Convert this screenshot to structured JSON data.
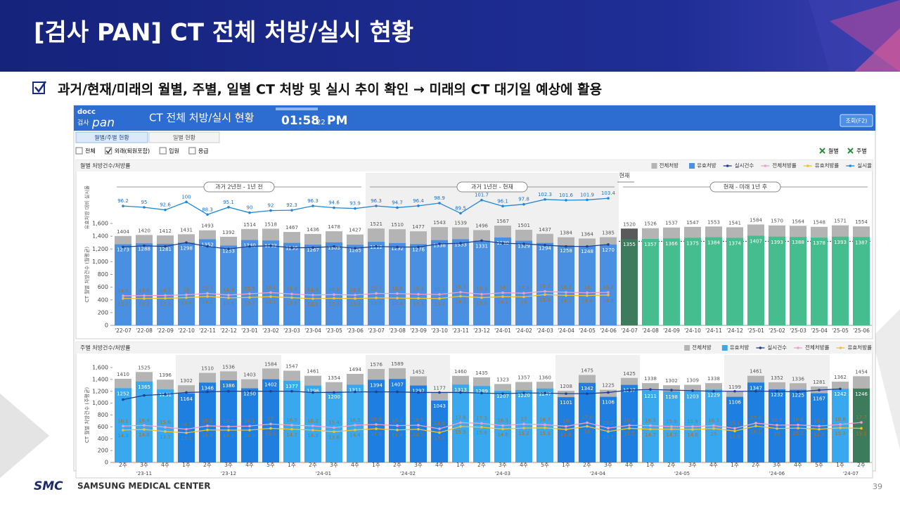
{
  "header": {
    "title": "[검사 PAN] CT 전체 처방/실시 현황",
    "subtitle": "과거/현재/미래의 월별, 주별, 일별 CT 처방 및 실시 추이 확인 → 미래의 CT 대기일 예상에 활용"
  },
  "app": {
    "logo_brand": "docc",
    "logo_sub": "검사",
    "logo_name": "pan",
    "title": "CT 전체 처방/실시 현황",
    "time": "01:58",
    "seconds": "22",
    "ampm": "PM",
    "search_button": "조회(F2)",
    "tabs": [
      "월별/주별 현황",
      "일별 현황"
    ],
    "filters": [
      {
        "label": "전체",
        "checked": false
      },
      {
        "label": "외래(퇴원포함)",
        "checked": true
      },
      {
        "label": "입원",
        "checked": false
      },
      {
        "label": "응급",
        "checked": false
      }
    ],
    "export_buttons": [
      "월별",
      "주별"
    ]
  },
  "chart_data": [
    {
      "type": "combo",
      "title": "월별 처방건수/처방률",
      "ylabel": "CT 월별 처방건수 (월평균)",
      "y3label": "유효처방 대비 실시율",
      "periods": [
        "과거 2년전 - 1년 전",
        "과거 1년전 - 현재",
        "현재 - 미래 1년 후"
      ],
      "current_label": "현재",
      "categories": [
        "'22-07",
        "'22-08",
        "'22-09",
        "'22-10",
        "'22-11",
        "'22-12",
        "'23-01",
        "'23-02",
        "'23-03",
        "'23-04",
        "'23-05",
        "'23-06",
        "'23-07",
        "'23-08",
        "'23-09",
        "'23-10",
        "'23-11",
        "'23-12",
        "'24-01",
        "'24-02",
        "'24-03",
        "'24-04",
        "'24-05",
        "'24-06",
        "'24-07",
        "'24-08",
        "'24-09",
        "'24-10",
        "'24-11",
        "'24-12",
        "'25-01",
        "'25-02",
        "'25-03",
        "'25-04",
        "'25-05",
        "'25-06"
      ],
      "ylim": [
        0,
        1600
      ],
      "yticks": [
        0,
        200,
        400,
        600,
        800,
        {
          "value": 1000,
          "label": "1,000"
        },
        {
          "value": 1200,
          "label": "1,200"
        },
        {
          "value": 1400,
          "label": "1,400"
        },
        {
          "value": 1600,
          "label": "1,600"
        }
      ],
      "y2lim": [
        0,
        50
      ],
      "y3lim": [
        80,
        110
      ],
      "series": [
        {
          "name": "전체처방",
          "kind": "bar",
          "color": "#b4b4b4",
          "values": [
            1404,
            1420,
            1412,
            1431,
            1493,
            1392,
            1514,
            1518,
            1467,
            1436,
            1478,
            1427,
            1521,
            1510,
            1477,
            1543,
            1539,
            1496,
            1567,
            1501,
            1437,
            1384,
            1364,
            1385,
            1520,
            1526,
            1537,
            1547,
            1553,
            1541,
            1584,
            1570,
            1564,
            1548,
            1571,
            1554
          ],
          "colors": [
            "#b4b4b4",
            "#b4b4b4",
            "#b4b4b4",
            "#b4b4b4",
            "#b4b4b4",
            "#b4b4b4",
            "#b4b4b4",
            "#b4b4b4",
            "#b4b4b4",
            "#b4b4b4",
            "#b4b4b4",
            "#b4b4b4",
            "#b4b4b4",
            "#b4b4b4",
            "#b4b4b4",
            "#b4b4b4",
            "#b4b4b4",
            "#b4b4b4",
            "#b4b4b4",
            "#b4b4b4",
            "#b4b4b4",
            "#b4b4b4",
            "#b4b4b4",
            "#b4b4b4",
            "#5a5a5a",
            "#b4b4b4",
            "#b4b4b4",
            "#b4b4b4",
            "#b4b4b4",
            "#b4b4b4",
            "#b4b4b4",
            "#b4b4b4",
            "#b4b4b4",
            "#b4b4b4",
            "#b4b4b4",
            "#b4b4b4"
          ]
        },
        {
          "name": "유효처방",
          "kind": "bar",
          "color": "#4a90e2",
          "values": [
            1273,
            1288,
            1281,
            1298,
            1352,
            1253,
            1340,
            1333,
            1295,
            1267,
            1303,
            1265,
            1312,
            1292,
            1276,
            1338,
            1353,
            1331,
            1380,
            1329,
            1294,
            1258,
            1248,
            1270,
            1355,
            1357,
            1366,
            1375,
            1384,
            1374,
            1407,
            1393,
            1388,
            1378,
            1393,
            1387
          ],
          "colors": [
            "#4a90e2",
            "#4a90e2",
            "#4a90e2",
            "#4a90e2",
            "#4a90e2",
            "#4a90e2",
            "#4a90e2",
            "#4a90e2",
            "#4a90e2",
            "#4a90e2",
            "#4a90e2",
            "#4a90e2",
            "#4a90e2",
            "#4a90e2",
            "#4a90e2",
            "#4a90e2",
            "#4a90e2",
            "#4a90e2",
            "#4a90e2",
            "#4a90e2",
            "#4a90e2",
            "#4a90e2",
            "#4a90e2",
            "#4a90e2",
            "#3d7b5d",
            "#46bd8e",
            "#46bd8e",
            "#46bd8e",
            "#46bd8e",
            "#46bd8e",
            "#46bd8e",
            "#46bd8e",
            "#46bd8e",
            "#46bd8e",
            "#46bd8e",
            "#46bd8e"
          ]
        },
        {
          "name": "실시건수",
          "kind": "line",
          "color": "#1f3f8f",
          "values": [
            1230,
            1250,
            1240,
            1300,
            1240,
            1200,
            1240,
            1250,
            1220,
            1220,
            1240,
            1210,
            1240,
            1230,
            1230,
            1280,
            1290,
            1330,
            1290,
            1280,
            1260,
            1240,
            1240,
            1270,
            null,
            null,
            null,
            null,
            null,
            null,
            null,
            null,
            null,
            null,
            null,
            null
          ]
        },
        {
          "name": "전체처방률",
          "kind": "line",
          "axis": "y2",
          "label_pos": "above",
          "color": "#f0a0c8",
          "values": [
            14.5,
            14.6,
            14.7,
            15,
            15.7,
            14.9,
            15.5,
            16.1,
            15.4,
            14.9,
            15.1,
            14.9,
            15.7,
            15.6,
            15.3,
            15.2,
            16.3,
            15.3,
            16,
            15.8,
            16.7,
            16.2,
            16,
            16.2,
            null,
            null,
            null,
            null,
            null,
            null,
            null,
            null,
            null,
            null,
            null,
            null
          ]
        },
        {
          "name": "유효처방률",
          "kind": "line",
          "axis": "y2",
          "label_pos": "below",
          "color": "#f2c12e",
          "values": [
            13.2,
            13.2,
            13.3,
            13.6,
            14.2,
            13.5,
            13.7,
            14.1,
            13.6,
            13.1,
            13.3,
            13.2,
            13.5,
            13.4,
            13.3,
            13.2,
            14.3,
            13.6,
            14.1,
            14,
            15.1,
            14.7,
            14.6,
            14.9,
            null,
            null,
            null,
            null,
            null,
            null,
            null,
            null,
            null,
            null,
            null,
            null
          ]
        },
        {
          "name": "실시율",
          "kind": "line",
          "axis": "y3",
          "label_pos": "above",
          "color": "#1e88d8",
          "values": [
            96.2,
            95,
            92.6,
            100,
            88.3,
            95.1,
            90,
            92,
            92.3,
            96.3,
            94.6,
            93.9,
            96.3,
            94.7,
            96.4,
            98.9,
            89.5,
            101.7,
            96.1,
            97.8,
            102.3,
            101.6,
            101.9,
            103.4,
            null,
            null,
            null,
            null,
            null,
            null,
            null,
            null,
            null,
            null,
            null,
            null
          ]
        }
      ]
    },
    {
      "type": "combo",
      "title": "주별 처방건수/처방률",
      "ylabel": "CT 월별 처방건수 (주평균)",
      "groups": [
        {
          "label": "'23-11",
          "categories": [
            "2주",
            "3주",
            "4주"
          ]
        },
        {
          "label": "'23-12",
          "categories": [
            "1주",
            "2주",
            "3주",
            "4주",
            "5주"
          ]
        },
        {
          "label": "'24-01",
          "categories": [
            "1주",
            "2주",
            "3주",
            "4주"
          ]
        },
        {
          "label": "'24-02",
          "categories": [
            "1주",
            "2주",
            "3주",
            "4주"
          ]
        },
        {
          "label": "'24-03",
          "categories": [
            "1주",
            "2주",
            "3주",
            "4주",
            "5주"
          ]
        },
        {
          "label": "'24-04",
          "categories": [
            "1주",
            "2주",
            "3주",
            "4주"
          ]
        },
        {
          "label": "'24-05",
          "categories": [
            "1주",
            "2주",
            "3주",
            "4주"
          ]
        },
        {
          "label": "'24-06",
          "categories": [
            "1주",
            "2주",
            "3주",
            "4주",
            "5주"
          ]
        },
        {
          "label": "'24-07",
          "categories": [
            "1주",
            "2주"
          ]
        }
      ],
      "ylim": [
        0,
        1600
      ],
      "yticks": [
        0,
        200,
        400,
        600,
        800,
        {
          "value": 1000,
          "label": "1,000"
        },
        {
          "value": 1200,
          "label": "1,200"
        },
        {
          "value": 1400,
          "label": "1,400"
        },
        {
          "value": 1600,
          "label": "1,600"
        }
      ],
      "y2lim": [
        0,
        42
      ],
      "series": [
        {
          "name": "전체처방",
          "kind": "bar",
          "color": "#b4b4b4",
          "values": [
            1410,
            1525,
            1396,
            1302,
            1510,
            1536,
            1403,
            1584,
            1547,
            1461,
            1354,
            1494,
            1576,
            1589,
            1452,
            1177,
            1460,
            1435,
            1323,
            1357,
            1360,
            1208,
            1475,
            1225,
            1425,
            1338,
            1302,
            1309,
            1338,
            1199,
            1461,
            1352,
            1336,
            1281,
            1362,
            1454
          ]
        },
        {
          "name": "유효처방",
          "kind": "bar",
          "color": "#3aa8ee",
          "values": [
            1252,
            1365,
            1231,
            1164,
            1346,
            1386,
            1250,
            1402,
            1377,
            1296,
            1200,
            1311,
            1394,
            1407,
            1297,
            1043,
            1313,
            1289,
            1207,
            1220,
            1247,
            1101,
            1342,
            1106,
            1307,
            1211,
            1198,
            1203,
            1229,
            1106,
            1347,
            1232,
            1225,
            1167,
            1242,
            1246
          ],
          "colors": [
            "#3aa8ee",
            "#3aa8ee",
            "#3aa8ee",
            "#1f7fe0",
            "#1f7fe0",
            "#1f7fe0",
            "#1f7fe0",
            "#1f7fe0",
            "#3aa8ee",
            "#3aa8ee",
            "#3aa8ee",
            "#3aa8ee",
            "#1f7fe0",
            "#1f7fe0",
            "#1f7fe0",
            "#1f7fe0",
            "#3aa8ee",
            "#3aa8ee",
            "#3aa8ee",
            "#3aa8ee",
            "#3aa8ee",
            "#1f7fe0",
            "#1f7fe0",
            "#1f7fe0",
            "#1f7fe0",
            "#3aa8ee",
            "#3aa8ee",
            "#3aa8ee",
            "#3aa8ee",
            "#1f7fe0",
            "#1f7fe0",
            "#1f7fe0",
            "#1f7fe0",
            "#1f7fe0",
            "#3aa8ee",
            "#3d7b5d"
          ]
        },
        {
          "name": "실시건수",
          "kind": "line",
          "color": "#1f3f8f",
          "values": [
            1060,
            1130,
            1150,
            1180,
            1190,
            1200,
            1200,
            1200,
            1200,
            1180,
            1180,
            1190,
            1190,
            1190,
            1180,
            1180,
            1180,
            1170,
            1160,
            1170,
            1170,
            1160,
            1160,
            1180,
            1220,
            1230,
            1220,
            1210,
            1200,
            1200,
            1200,
            1200,
            1190,
            1220,
            1240,
            null
          ]
        },
        {
          "name": "전체처방률",
          "kind": "line",
          "axis": "y2",
          "label_pos": "above",
          "color": "#f0a0c8",
          "values": [
            16.1,
            16.4,
            15.6,
            14.7,
            16.2,
            15.9,
            16.1,
            17,
            16.5,
            16.2,
            15.4,
            16.5,
            16.8,
            16.3,
            16.5,
            14.9,
            17.6,
            17.3,
            16.3,
            17,
            16.7,
            16,
            17.6,
            15.2,
            16.4,
            16.3,
            15.9,
            15.9,
            16.3,
            15.1,
            17.4,
            16.5,
            16.6,
            16.1,
            16.8,
            17.7
          ]
        },
        {
          "name": "유효처방률",
          "kind": "line",
          "axis": "y2",
          "label_pos": "below",
          "color": "#f2c12e",
          "values": [
            14.3,
            14.6,
            13.7,
            13.1,
            14.4,
            14.3,
            14.3,
            15.1,
            14.7,
            14.3,
            13.6,
            14.4,
            14.9,
            14.4,
            14.7,
            13.2,
            15.9,
            15.6,
            14.8,
            15.2,
            15.3,
            14.6,
            16,
            13.7,
            15.1,
            14.7,
            14.7,
            14.6,
            15,
            13.9,
            16.1,
            15,
            15.2,
            14.7,
            15.3,
            15.1
          ]
        }
      ]
    }
  ],
  "footer": {
    "logo": "SMC",
    "org": "SAMSUNG MEDICAL CENTER",
    "page": "39"
  }
}
